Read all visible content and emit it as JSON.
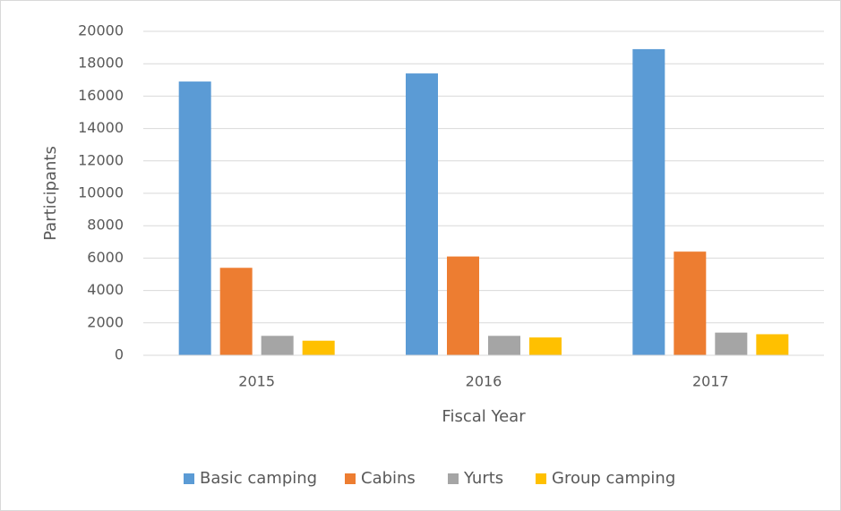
{
  "chart_data": {
    "type": "bar",
    "categories": [
      "2015",
      "2016",
      "2017"
    ],
    "series": [
      {
        "name": "Basic camping",
        "color": "#5b9bd5",
        "values": [
          16900,
          17400,
          18900
        ]
      },
      {
        "name": "Cabins",
        "color": "#ed7d31",
        "values": [
          5400,
          6100,
          6400
        ]
      },
      {
        "name": "Yurts",
        "color": "#a5a5a5",
        "values": [
          1200,
          1200,
          1400
        ]
      },
      {
        "name": "Group camping",
        "color": "#ffc000",
        "values": [
          900,
          1100,
          1300
        ]
      }
    ],
    "xlabel": "Fiscal Year",
    "ylabel": "Participants",
    "ylim": [
      0,
      20000
    ],
    "yticks": [
      0,
      2000,
      4000,
      6000,
      8000,
      10000,
      12000,
      14000,
      16000,
      18000,
      20000
    ],
    "grid": true,
    "legend": "bottom"
  }
}
